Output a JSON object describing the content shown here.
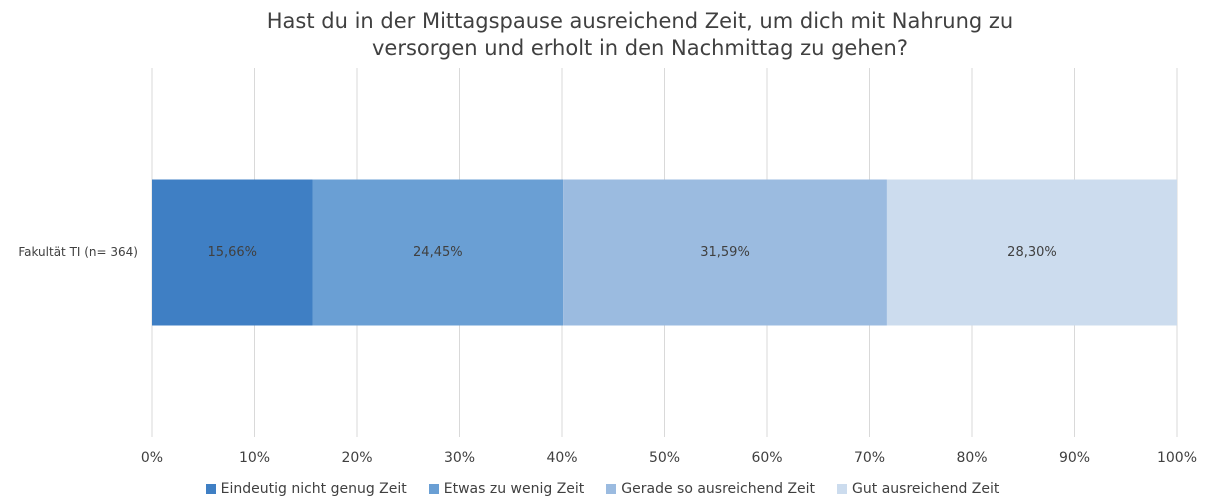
{
  "chart_data": {
    "type": "stacked-bar-horizontal",
    "title": "Hast du in der Mittagspause ausreichend Zeit, um dich mit Nahrung zu versorgen und erholt in den Nachmittag zu gehen?",
    "categories": [
      "Fakultät TI (n= 364)"
    ],
    "series": [
      {
        "name": "Eindeutig nicht genug Zeit",
        "color": "#3f7fc4",
        "values": [
          15.66
        ],
        "value_labels": [
          "15,66%"
        ]
      },
      {
        "name": "Etwas zu wenig Zeit",
        "color": "#6a9fd4",
        "values": [
          24.45
        ],
        "value_labels": [
          "24,45%"
        ]
      },
      {
        "name": "Gerade so ausreichend Zeit",
        "color": "#9bbbe0",
        "values": [
          31.59
        ],
        "value_labels": [
          "31,59%"
        ]
      },
      {
        "name": "Gut ausreichend Zeit",
        "color": "#ccdcee",
        "values": [
          28.3
        ],
        "value_labels": [
          "28,30%"
        ]
      }
    ],
    "xlim": [
      0,
      100
    ],
    "xticks": [
      {
        "value": 0,
        "label": "0%"
      },
      {
        "value": 10,
        "label": "10%"
      },
      {
        "value": 20,
        "label": "20%"
      },
      {
        "value": 30,
        "label": "30%"
      },
      {
        "value": 40,
        "label": "40%"
      },
      {
        "value": 50,
        "label": "50%"
      },
      {
        "value": 60,
        "label": "60%"
      },
      {
        "value": 70,
        "label": "70%"
      },
      {
        "value": 80,
        "label": "80%"
      },
      {
        "value": 90,
        "label": "90%"
      },
      {
        "value": 100,
        "label": "100%"
      }
    ],
    "grid": true,
    "legend": "bottom"
  }
}
